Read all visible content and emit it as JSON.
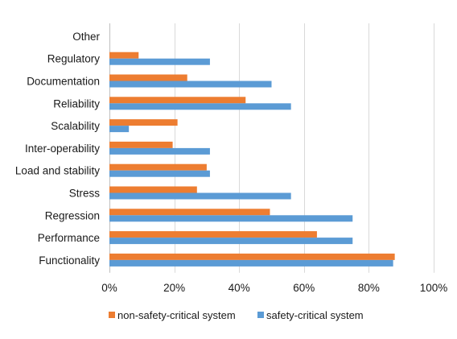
{
  "chart_data": {
    "type": "bar",
    "orientation": "horizontal",
    "title": "",
    "xlabel": "",
    "ylabel": "",
    "xlim": [
      0,
      100
    ],
    "x_ticks": [
      "0%",
      "20%",
      "40%",
      "60%",
      "80%",
      "100%"
    ],
    "grid": true,
    "legend_position": "bottom",
    "categories": [
      "Other",
      "Regulatory",
      "Documentation",
      "Reliability",
      "Scalability",
      "Inter-operability",
      "Load and stability",
      "Stress",
      "Regression",
      "Performance",
      "Functionality"
    ],
    "series": [
      {
        "name": "non-safety-critical system",
        "color": "#ED7D31",
        "values": [
          0,
          9,
          24,
          42,
          21,
          19.5,
          30,
          27,
          49.5,
          64,
          88
        ]
      },
      {
        "name": "safety-critical system",
        "color": "#5B9BD5",
        "values": [
          0,
          31,
          50,
          56,
          6,
          31,
          31,
          56,
          75,
          75,
          87.5
        ]
      }
    ]
  }
}
